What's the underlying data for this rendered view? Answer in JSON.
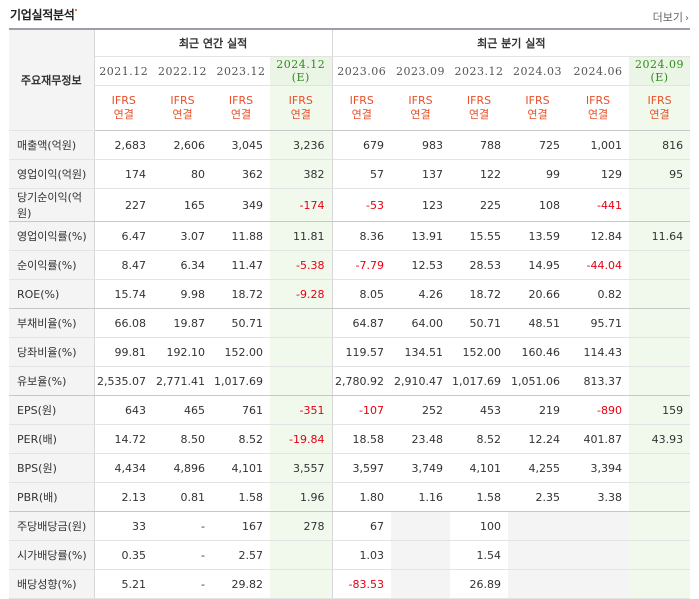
{
  "header": {
    "title": "기업실적분석",
    "more_label": "더보기"
  },
  "table": {
    "corner_label": "주요재무정보",
    "annual_group_label": "최근 연간 실적",
    "quarter_group_label": "최근 분기 실적",
    "periods": [
      {
        "label": "2021.12",
        "est": ""
      },
      {
        "label": "2022.12",
        "est": ""
      },
      {
        "label": "2023.12",
        "est": ""
      },
      {
        "label": "2024.12",
        "est": "(E)"
      },
      {
        "label": "2023.06",
        "est": ""
      },
      {
        "label": "2023.09",
        "est": ""
      },
      {
        "label": "2023.12",
        "est": ""
      },
      {
        "label": "2024.03",
        "est": ""
      },
      {
        "label": "2024.06",
        "est": ""
      },
      {
        "label": "2024.09",
        "est": "(E)"
      }
    ],
    "ifrs_top": "IFRS",
    "ifrs_bottom": "연결",
    "rows": [
      {
        "label": "매출액(억원)",
        "values": [
          "2,683",
          "2,606",
          "3,045",
          "3,236",
          "679",
          "983",
          "788",
          "725",
          "1,001",
          "816"
        ]
      },
      {
        "label": "영업이익(억원)",
        "values": [
          "174",
          "80",
          "362",
          "382",
          "57",
          "137",
          "122",
          "99",
          "129",
          "95"
        ]
      },
      {
        "label": "당기순이익(억원)",
        "values": [
          "227",
          "165",
          "349",
          "-174",
          "-53",
          "123",
          "225",
          "108",
          "-441",
          ""
        ]
      },
      {
        "label": "영업이익률(%)",
        "values": [
          "6.47",
          "3.07",
          "11.88",
          "11.81",
          "8.36",
          "13.91",
          "15.55",
          "13.59",
          "12.84",
          "11.64"
        ]
      },
      {
        "label": "순이익률(%)",
        "values": [
          "8.47",
          "6.34",
          "11.47",
          "-5.38",
          "-7.79",
          "12.53",
          "28.53",
          "14.95",
          "-44.04",
          ""
        ]
      },
      {
        "label": "ROE(%)",
        "values": [
          "15.74",
          "9.98",
          "18.72",
          "-9.28",
          "8.05",
          "4.26",
          "18.72",
          "20.66",
          "0.82",
          ""
        ]
      },
      {
        "label": "부채비율(%)",
        "values": [
          "66.08",
          "19.87",
          "50.71",
          "",
          "64.87",
          "64.00",
          "50.71",
          "48.51",
          "95.71",
          ""
        ]
      },
      {
        "label": "당좌비율(%)",
        "values": [
          "99.81",
          "192.10",
          "152.00",
          "",
          "119.57",
          "134.51",
          "152.00",
          "160.46",
          "114.43",
          ""
        ]
      },
      {
        "label": "유보율(%)",
        "values": [
          "2,535.07",
          "2,771.41",
          "1,017.69",
          "",
          "2,780.92",
          "2,910.47",
          "1,017.69",
          "1,051.06",
          "813.37",
          ""
        ]
      },
      {
        "label": "EPS(원)",
        "values": [
          "643",
          "465",
          "761",
          "-351",
          "-107",
          "252",
          "453",
          "219",
          "-890",
          "159"
        ]
      },
      {
        "label": "PER(배)",
        "values": [
          "14.72",
          "8.50",
          "8.52",
          "-19.84",
          "18.58",
          "23.48",
          "8.52",
          "12.24",
          "401.87",
          "43.93"
        ]
      },
      {
        "label": "BPS(원)",
        "values": [
          "4,434",
          "4,896",
          "4,101",
          "3,557",
          "3,597",
          "3,749",
          "4,101",
          "4,255",
          "3,394",
          ""
        ]
      },
      {
        "label": "PBR(배)",
        "values": [
          "2.13",
          "0.81",
          "1.58",
          "1.96",
          "1.80",
          "1.16",
          "1.58",
          "2.35",
          "3.38",
          ""
        ]
      },
      {
        "label": "주당배당금(원)",
        "values": [
          "33",
          "-",
          "167",
          "278",
          "67",
          "",
          "100",
          "",
          "",
          ""
        ]
      },
      {
        "label": "시가배당률(%)",
        "values": [
          "0.35",
          "-",
          "2.57",
          "",
          "1.03",
          "",
          "1.54",
          "",
          "",
          ""
        ]
      },
      {
        "label": "배당성향(%)",
        "values": [
          "5.21",
          "-",
          "29.82",
          "",
          "-83.53",
          "",
          "26.89",
          "",
          "",
          ""
        ]
      }
    ]
  },
  "colors": {
    "negative": "#e60012",
    "ifrs": "#e8502a",
    "estimate_bg": "#f1f9ed",
    "header_bg": "#f4f4f4"
  }
}
